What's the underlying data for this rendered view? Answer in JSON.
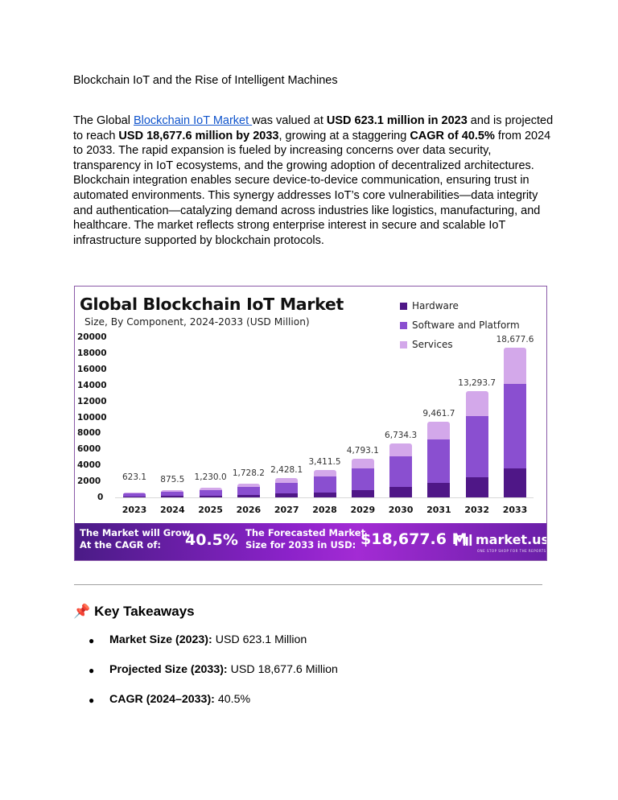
{
  "document": {
    "title": "Blockchain IoT and the Rise of Intelligent Machines",
    "intro": {
      "prefix": "The Global ",
      "link_text": "Blockchain IoT Market ",
      "seg1": "was valued at ",
      "bold1": "USD 623.1 million in 2023",
      "seg2": " and is projected to reach ",
      "bold2": "USD 18,677.6 million by 2033",
      "seg3": ", growing at a staggering ",
      "bold3": "CAGR of 40.5%",
      "seg4": " from 2024 to 2033. The rapid expansion is fueled by increasing concerns over data security, transparency in IoT ecosystems, and the growing adoption of decentralized architectures. Blockchain integration enables secure device-to-device communication, ensuring trust in automated environments. This synergy addresses IoT’s core vulnerabilities—data integrity and authentication—catalyzing demand across industries like logistics, manufacturing, and healthcare. The market reflects strong enterprise interest in secure and scalable IoT infrastructure supported by blockchain protocols."
    },
    "key_takeaways": {
      "icon": "pushpin-icon",
      "icon_glyph": "📌",
      "title": "Key Takeaways",
      "items": [
        {
          "label": "Market Size (2023):",
          "value": "USD 623.1 Million"
        },
        {
          "label": "Projected Size (2033):",
          "value": "USD 18,677.6 Million"
        },
        {
          "label": "CAGR (2024–2033):",
          "value": "40.5%"
        }
      ]
    }
  },
  "chart_image": {
    "title": "Global Blockchain IoT Market",
    "subtitle": "Size, By Component, 2024-2033 (USD Million)",
    "banner": {
      "text1_line1": "The Market will Grow",
      "text1_line2": "At the CAGR of:",
      "value1": "40.5%",
      "text2_line1": "The Forecasted Market",
      "text2_line2": "Size for 2033 in USD:",
      "value2": "$18,677.6 M",
      "brand": "market.us",
      "brand_tagline": "ONE STOP SHOP FOR THE REPORTS"
    },
    "colors": {
      "hardware": "#4f1787",
      "software": "#8a4fd0",
      "services": "#d3a8ea",
      "border": "#8a5aa8"
    }
  },
  "chart_data": {
    "type": "bar",
    "stacked": true,
    "title": "Global Blockchain IoT Market",
    "subtitle": "Size, By Component, 2024-2033 (USD Million)",
    "xlabel": "",
    "ylabel": "",
    "ylim": [
      0,
      20000
    ],
    "yticks": [
      0,
      2000,
      4000,
      6000,
      8000,
      10000,
      12000,
      14000,
      16000,
      18000,
      20000
    ],
    "grid": false,
    "legend_position": "top-right",
    "categories": [
      "2023",
      "2024",
      "2025",
      "2026",
      "2027",
      "2028",
      "2029",
      "2030",
      "2031",
      "2032",
      "2033"
    ],
    "totals": [
      623.1,
      875.5,
      1230.0,
      1728.2,
      2428.1,
      3411.5,
      4793.1,
      6734.3,
      9461.7,
      13293.7,
      18677.6
    ],
    "total_labels": [
      "623.1",
      "875.5",
      "1,230.0",
      "1,728.2",
      "2,428.1",
      "3,411.5",
      "4,793.1",
      "6,734.3",
      "9,461.7",
      "13,293.7",
      "18,677.6"
    ],
    "series": [
      {
        "name": "Hardware",
        "color": "#4f1787",
        "values": [
          118,
          166,
          234,
          328,
          461,
          648,
          911,
          1280,
          1798,
          2526,
          3600
        ]
      },
      {
        "name": "Software and Platform",
        "color": "#8a4fd0",
        "values": [
          355,
          499,
          701,
          985,
          1384,
          1945,
          2732,
          3839,
          5393,
          7577,
          10550
        ]
      },
      {
        "name": "Services",
        "color": "#d3a8ea",
        "values": [
          150,
          210,
          295,
          415,
          583,
          819,
          1150,
          1616,
          2271,
          3191,
          4528
        ]
      }
    ]
  }
}
